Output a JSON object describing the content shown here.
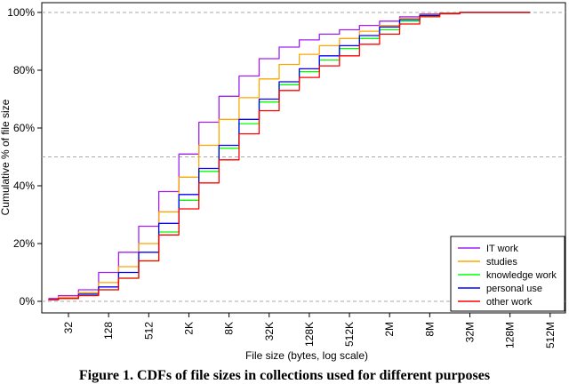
{
  "caption": "Figure 1. CDFs of file sizes in collections used for different purposes",
  "chart_data": {
    "type": "line",
    "title": "",
    "xlabel": "File size (bytes, log scale)",
    "ylabel": "Cumulative % of file size",
    "x_scale": "log2",
    "x_ticks": [
      "32",
      "128",
      "512",
      "2K",
      "8K",
      "32K",
      "128K",
      "512K",
      "2M",
      "8M",
      "32M",
      "128M",
      "512M"
    ],
    "x_tick_bytes": [
      32,
      128,
      512,
      2048,
      8192,
      32768,
      131072,
      524288,
      2097152,
      8388608,
      33554432,
      134217728,
      536870912
    ],
    "y_ticks": [
      "0%",
      "20%",
      "40%",
      "60%",
      "80%",
      "100%"
    ],
    "ylim": [
      0,
      100
    ],
    "reference_lines_y": [
      0,
      50,
      100
    ],
    "legend_position": "bottom-right",
    "colors": {
      "IT work": "#a020f0",
      "studies": "#ffa500",
      "knowledge work": "#00ff00",
      "personal use": "#0000ff",
      "other work": "#ff0000"
    },
    "x": [
      16,
      32,
      64,
      128,
      256,
      512,
      1024,
      2048,
      4096,
      8192,
      16384,
      32768,
      65536,
      131072,
      262144,
      524288,
      1048576,
      2097152,
      4194304,
      8388608,
      16777216,
      33554432,
      67108864,
      134217728,
      268435456
    ],
    "series": [
      {
        "name": "IT work",
        "values": [
          1,
          2,
          4,
          10,
          17,
          26,
          38,
          51,
          62,
          71,
          78,
          84,
          88,
          90.5,
          92.5,
          94,
          95.5,
          97,
          98.5,
          99.5,
          99.8,
          100,
          100,
          100,
          100
        ]
      },
      {
        "name": "studies",
        "values": [
          0.5,
          1.5,
          3,
          6.5,
          12,
          20,
          31,
          43,
          54,
          63,
          70.5,
          77,
          82,
          85.5,
          88.5,
          91,
          93.5,
          95.5,
          98,
          99.3,
          99.8,
          100,
          100,
          100,
          100
        ]
      },
      {
        "name": "knowledge work",
        "values": [
          0.5,
          1,
          2,
          4,
          8,
          14,
          24,
          35,
          45,
          53,
          61.5,
          69,
          75,
          79.5,
          83.5,
          87.5,
          91,
          94,
          97,
          98.8,
          99.6,
          100,
          100,
          100,
          100
        ]
      },
      {
        "name": "personal use",
        "values": [
          0.5,
          1,
          2.5,
          5,
          10,
          17,
          27,
          37,
          46,
          54,
          63,
          70,
          76,
          80.5,
          85,
          88.5,
          92,
          95,
          97.5,
          99,
          99.6,
          100,
          100,
          100,
          100
        ]
      },
      {
        "name": "other work",
        "values": [
          0.5,
          1,
          2,
          4,
          8,
          14,
          23,
          32,
          41,
          49,
          58,
          66,
          73,
          77.5,
          81.5,
          85,
          89,
          92.5,
          96,
          98.5,
          99.5,
          100,
          100,
          100,
          100
        ]
      }
    ]
  }
}
